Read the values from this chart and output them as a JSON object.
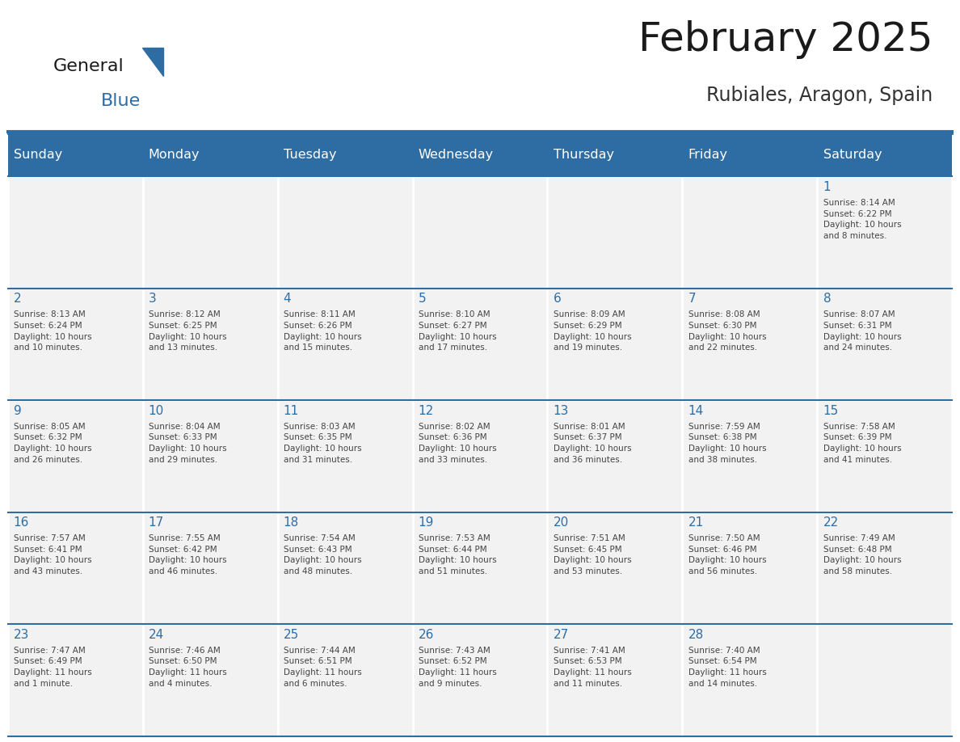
{
  "title": "February 2025",
  "subtitle": "Rubiales, Aragon, Spain",
  "days_of_week": [
    "Sunday",
    "Monday",
    "Tuesday",
    "Wednesday",
    "Thursday",
    "Friday",
    "Saturday"
  ],
  "header_bg": "#2E6DA4",
  "header_text": "#FFFFFF",
  "cell_bg": "#F2F2F2",
  "cell_border": "#FFFFFF",
  "day_num_color": "#2E6DA4",
  "info_text_color": "#444444",
  "title_color": "#1a1a1a",
  "subtitle_color": "#333333",
  "logo_general_color": "#1a1a1a",
  "logo_blue_color": "#2E6DA4",
  "weeks": [
    [
      null,
      null,
      null,
      null,
      null,
      null,
      1
    ],
    [
      2,
      3,
      4,
      5,
      6,
      7,
      8
    ],
    [
      9,
      10,
      11,
      12,
      13,
      14,
      15
    ],
    [
      16,
      17,
      18,
      19,
      20,
      21,
      22
    ],
    [
      23,
      24,
      25,
      26,
      27,
      28,
      null
    ]
  ],
  "cell_data": {
    "1": [
      "Sunrise: 8:14 AM",
      "Sunset: 6:22 PM",
      "Daylight: 10 hours",
      "and 8 minutes."
    ],
    "2": [
      "Sunrise: 8:13 AM",
      "Sunset: 6:24 PM",
      "Daylight: 10 hours",
      "and 10 minutes."
    ],
    "3": [
      "Sunrise: 8:12 AM",
      "Sunset: 6:25 PM",
      "Daylight: 10 hours",
      "and 13 minutes."
    ],
    "4": [
      "Sunrise: 8:11 AM",
      "Sunset: 6:26 PM",
      "Daylight: 10 hours",
      "and 15 minutes."
    ],
    "5": [
      "Sunrise: 8:10 AM",
      "Sunset: 6:27 PM",
      "Daylight: 10 hours",
      "and 17 minutes."
    ],
    "6": [
      "Sunrise: 8:09 AM",
      "Sunset: 6:29 PM",
      "Daylight: 10 hours",
      "and 19 minutes."
    ],
    "7": [
      "Sunrise: 8:08 AM",
      "Sunset: 6:30 PM",
      "Daylight: 10 hours",
      "and 22 minutes."
    ],
    "8": [
      "Sunrise: 8:07 AM",
      "Sunset: 6:31 PM",
      "Daylight: 10 hours",
      "and 24 minutes."
    ],
    "9": [
      "Sunrise: 8:05 AM",
      "Sunset: 6:32 PM",
      "Daylight: 10 hours",
      "and 26 minutes."
    ],
    "10": [
      "Sunrise: 8:04 AM",
      "Sunset: 6:33 PM",
      "Daylight: 10 hours",
      "and 29 minutes."
    ],
    "11": [
      "Sunrise: 8:03 AM",
      "Sunset: 6:35 PM",
      "Daylight: 10 hours",
      "and 31 minutes."
    ],
    "12": [
      "Sunrise: 8:02 AM",
      "Sunset: 6:36 PM",
      "Daylight: 10 hours",
      "and 33 minutes."
    ],
    "13": [
      "Sunrise: 8:01 AM",
      "Sunset: 6:37 PM",
      "Daylight: 10 hours",
      "and 36 minutes."
    ],
    "14": [
      "Sunrise: 7:59 AM",
      "Sunset: 6:38 PM",
      "Daylight: 10 hours",
      "and 38 minutes."
    ],
    "15": [
      "Sunrise: 7:58 AM",
      "Sunset: 6:39 PM",
      "Daylight: 10 hours",
      "and 41 minutes."
    ],
    "16": [
      "Sunrise: 7:57 AM",
      "Sunset: 6:41 PM",
      "Daylight: 10 hours",
      "and 43 minutes."
    ],
    "17": [
      "Sunrise: 7:55 AM",
      "Sunset: 6:42 PM",
      "Daylight: 10 hours",
      "and 46 minutes."
    ],
    "18": [
      "Sunrise: 7:54 AM",
      "Sunset: 6:43 PM",
      "Daylight: 10 hours",
      "and 48 minutes."
    ],
    "19": [
      "Sunrise: 7:53 AM",
      "Sunset: 6:44 PM",
      "Daylight: 10 hours",
      "and 51 minutes."
    ],
    "20": [
      "Sunrise: 7:51 AM",
      "Sunset: 6:45 PM",
      "Daylight: 10 hours",
      "and 53 minutes."
    ],
    "21": [
      "Sunrise: 7:50 AM",
      "Sunset: 6:46 PM",
      "Daylight: 10 hours",
      "and 56 minutes."
    ],
    "22": [
      "Sunrise: 7:49 AM",
      "Sunset: 6:48 PM",
      "Daylight: 10 hours",
      "and 58 minutes."
    ],
    "23": [
      "Sunrise: 7:47 AM",
      "Sunset: 6:49 PM",
      "Daylight: 11 hours",
      "and 1 minute."
    ],
    "24": [
      "Sunrise: 7:46 AM",
      "Sunset: 6:50 PM",
      "Daylight: 11 hours",
      "and 4 minutes."
    ],
    "25": [
      "Sunrise: 7:44 AM",
      "Sunset: 6:51 PM",
      "Daylight: 11 hours",
      "and 6 minutes."
    ],
    "26": [
      "Sunrise: 7:43 AM",
      "Sunset: 6:52 PM",
      "Daylight: 11 hours",
      "and 9 minutes."
    ],
    "27": [
      "Sunrise: 7:41 AM",
      "Sunset: 6:53 PM",
      "Daylight: 11 hours",
      "and 11 minutes."
    ],
    "28": [
      "Sunrise: 7:40 AM",
      "Sunset: 6:54 PM",
      "Daylight: 11 hours",
      "and 14 minutes."
    ]
  }
}
